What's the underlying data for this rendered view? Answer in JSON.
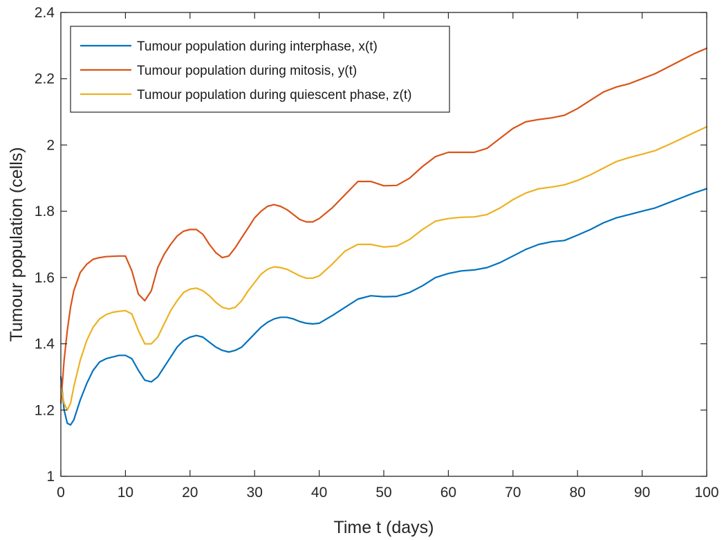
{
  "chart_data": {
    "type": "line",
    "title": "",
    "xlabel": "Time t (days)",
    "ylabel": "Tumour population (cells)",
    "xlim": [
      0,
      100
    ],
    "ylim": [
      1,
      2.4
    ],
    "xticks": [
      0,
      10,
      20,
      30,
      40,
      50,
      60,
      70,
      80,
      90,
      100
    ],
    "yticks": [
      1,
      1.2,
      1.4,
      1.6,
      1.8,
      2,
      2.2,
      2.4
    ],
    "xtick_labels": [
      "0",
      "10",
      "20",
      "30",
      "40",
      "50",
      "60",
      "70",
      "80",
      "90",
      "100"
    ],
    "ytick_labels": [
      "1",
      "1.2",
      "1.4",
      "1.6",
      "1.8",
      "2",
      "2.2",
      "2.4"
    ],
    "grid": false,
    "legend_position": "top-left",
    "series": [
      {
        "name": "Tumour population during interphase, x(t)",
        "color": "#0072BD",
        "x": [
          0,
          0.5,
          1,
          1.5,
          2,
          3,
          4,
          5,
          6,
          7,
          8,
          9,
          10,
          11,
          12,
          13,
          14,
          15,
          16,
          17,
          18,
          19,
          20,
          21,
          22,
          23,
          24,
          25,
          26,
          27,
          28,
          29,
          30,
          31,
          32,
          33,
          34,
          35,
          36,
          37,
          38,
          39,
          40,
          42,
          44,
          46,
          48,
          50,
          52,
          54,
          56,
          58,
          60,
          62,
          64,
          66,
          68,
          70,
          72,
          74,
          76,
          78,
          80,
          82,
          84,
          86,
          88,
          90,
          92,
          94,
          96,
          98,
          100
        ],
        "y": [
          1.3,
          1.2,
          1.16,
          1.155,
          1.17,
          1.23,
          1.28,
          1.32,
          1.345,
          1.355,
          1.36,
          1.365,
          1.365,
          1.355,
          1.32,
          1.29,
          1.285,
          1.3,
          1.33,
          1.36,
          1.39,
          1.41,
          1.42,
          1.425,
          1.42,
          1.405,
          1.39,
          1.38,
          1.375,
          1.38,
          1.39,
          1.41,
          1.43,
          1.45,
          1.465,
          1.475,
          1.48,
          1.48,
          1.475,
          1.467,
          1.462,
          1.46,
          1.462,
          1.485,
          1.51,
          1.535,
          1.545,
          1.542,
          1.543,
          1.555,
          1.575,
          1.6,
          1.612,
          1.62,
          1.623,
          1.63,
          1.645,
          1.665,
          1.685,
          1.7,
          1.708,
          1.712,
          1.728,
          1.745,
          1.765,
          1.78,
          1.79,
          1.8,
          1.81,
          1.825,
          1.84,
          1.855,
          1.868
        ]
      },
      {
        "name": "Tumour population during mitosis, y(t)",
        "color": "#D95319",
        "x": [
          0,
          0.5,
          1,
          1.5,
          2,
          3,
          4,
          5,
          6,
          7,
          8,
          9,
          10,
          11,
          12,
          13,
          14,
          15,
          16,
          17,
          18,
          19,
          20,
          21,
          22,
          23,
          24,
          25,
          26,
          27,
          28,
          29,
          30,
          31,
          32,
          33,
          34,
          35,
          36,
          37,
          38,
          39,
          40,
          42,
          44,
          46,
          48,
          50,
          52,
          54,
          56,
          58,
          60,
          62,
          64,
          66,
          68,
          70,
          72,
          74,
          76,
          78,
          80,
          82,
          84,
          86,
          88,
          90,
          92,
          94,
          96,
          98,
          100
        ],
        "y": [
          1.22,
          1.35,
          1.44,
          1.51,
          1.56,
          1.615,
          1.64,
          1.655,
          1.66,
          1.663,
          1.664,
          1.665,
          1.665,
          1.62,
          1.55,
          1.53,
          1.56,
          1.63,
          1.67,
          1.7,
          1.725,
          1.74,
          1.745,
          1.745,
          1.73,
          1.7,
          1.675,
          1.66,
          1.665,
          1.69,
          1.72,
          1.75,
          1.78,
          1.8,
          1.815,
          1.82,
          1.815,
          1.805,
          1.79,
          1.775,
          1.768,
          1.768,
          1.778,
          1.81,
          1.85,
          1.89,
          1.89,
          1.877,
          1.878,
          1.9,
          1.935,
          1.965,
          1.978,
          1.978,
          1.978,
          1.99,
          2.02,
          2.05,
          2.07,
          2.077,
          2.082,
          2.09,
          2.11,
          2.135,
          2.16,
          2.175,
          2.185,
          2.2,
          2.215,
          2.235,
          2.255,
          2.275,
          2.292
        ]
      },
      {
        "name": "Tumour population during quiescent phase, z(t)",
        "color": "#EDB120",
        "x": [
          0,
          0.5,
          1,
          1.5,
          2,
          3,
          4,
          5,
          6,
          7,
          8,
          9,
          10,
          11,
          12,
          13,
          14,
          15,
          16,
          17,
          18,
          19,
          20,
          21,
          22,
          23,
          24,
          25,
          26,
          27,
          28,
          29,
          30,
          31,
          32,
          33,
          34,
          35,
          36,
          37,
          38,
          39,
          40,
          42,
          44,
          46,
          48,
          50,
          52,
          54,
          56,
          58,
          60,
          62,
          64,
          66,
          68,
          70,
          72,
          74,
          76,
          78,
          80,
          82,
          84,
          86,
          88,
          90,
          92,
          94,
          96,
          98,
          100
        ],
        "y": [
          1.27,
          1.22,
          1.2,
          1.22,
          1.27,
          1.35,
          1.41,
          1.45,
          1.475,
          1.488,
          1.495,
          1.498,
          1.5,
          1.49,
          1.44,
          1.4,
          1.4,
          1.42,
          1.46,
          1.5,
          1.53,
          1.555,
          1.565,
          1.568,
          1.56,
          1.545,
          1.525,
          1.51,
          1.505,
          1.51,
          1.53,
          1.56,
          1.585,
          1.61,
          1.625,
          1.632,
          1.63,
          1.625,
          1.615,
          1.605,
          1.598,
          1.598,
          1.605,
          1.64,
          1.68,
          1.7,
          1.7,
          1.692,
          1.695,
          1.715,
          1.745,
          1.77,
          1.778,
          1.782,
          1.783,
          1.79,
          1.81,
          1.835,
          1.855,
          1.868,
          1.873,
          1.88,
          1.893,
          1.91,
          1.93,
          1.95,
          1.962,
          1.972,
          1.983,
          2.0,
          2.018,
          2.037,
          2.055
        ]
      }
    ]
  }
}
